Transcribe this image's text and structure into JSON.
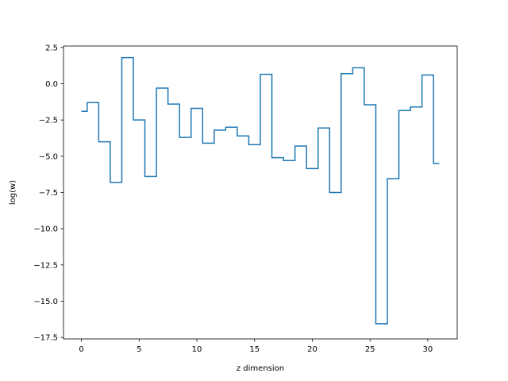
{
  "chart_data": {
    "type": "line",
    "drawstyle": "steps-mid",
    "xlabel": "z dimension",
    "ylabel": "log(w)",
    "xlim": [
      -1.55,
      32.55
    ],
    "ylim": [
      -17.6,
      2.6
    ],
    "x_ticks": [
      0,
      5,
      10,
      15,
      20,
      25,
      30
    ],
    "x_tick_labels": [
      "0",
      "5",
      "10",
      "15",
      "20",
      "25",
      "30"
    ],
    "y_ticks": [
      2.5,
      0,
      -2.5,
      -5,
      -7.5,
      -10,
      -12.5,
      -15,
      -17.5
    ],
    "y_tick_labels": [
      "2.5",
      "0.0",
      "−2.5",
      "−5.0",
      "−7.5",
      "−10.0",
      "−12.5",
      "−15.0",
      "−17.5"
    ],
    "grid": false,
    "series": [
      {
        "color": "#1f77b4",
        "x": [
          0,
          1,
          2,
          3,
          4,
          5,
          6,
          7,
          8,
          9,
          10,
          11,
          12,
          13,
          14,
          15,
          16,
          17,
          18,
          19,
          20,
          21,
          22,
          23,
          24,
          25,
          26,
          27,
          28,
          29,
          30,
          31
        ],
        "y": [
          -1.9,
          -1.3,
          -4.0,
          -6.8,
          1.8,
          -2.5,
          -6.4,
          -0.3,
          -1.4,
          -3.7,
          -1.7,
          -4.1,
          -3.2,
          -3.0,
          -3.6,
          -4.2,
          0.65,
          -5.1,
          -5.3,
          -4.3,
          -5.85,
          -3.05,
          -7.5,
          0.7,
          1.1,
          -1.45,
          -16.55,
          -6.55,
          -1.85,
          -1.6,
          0.6,
          -5.5
        ]
      }
    ]
  }
}
